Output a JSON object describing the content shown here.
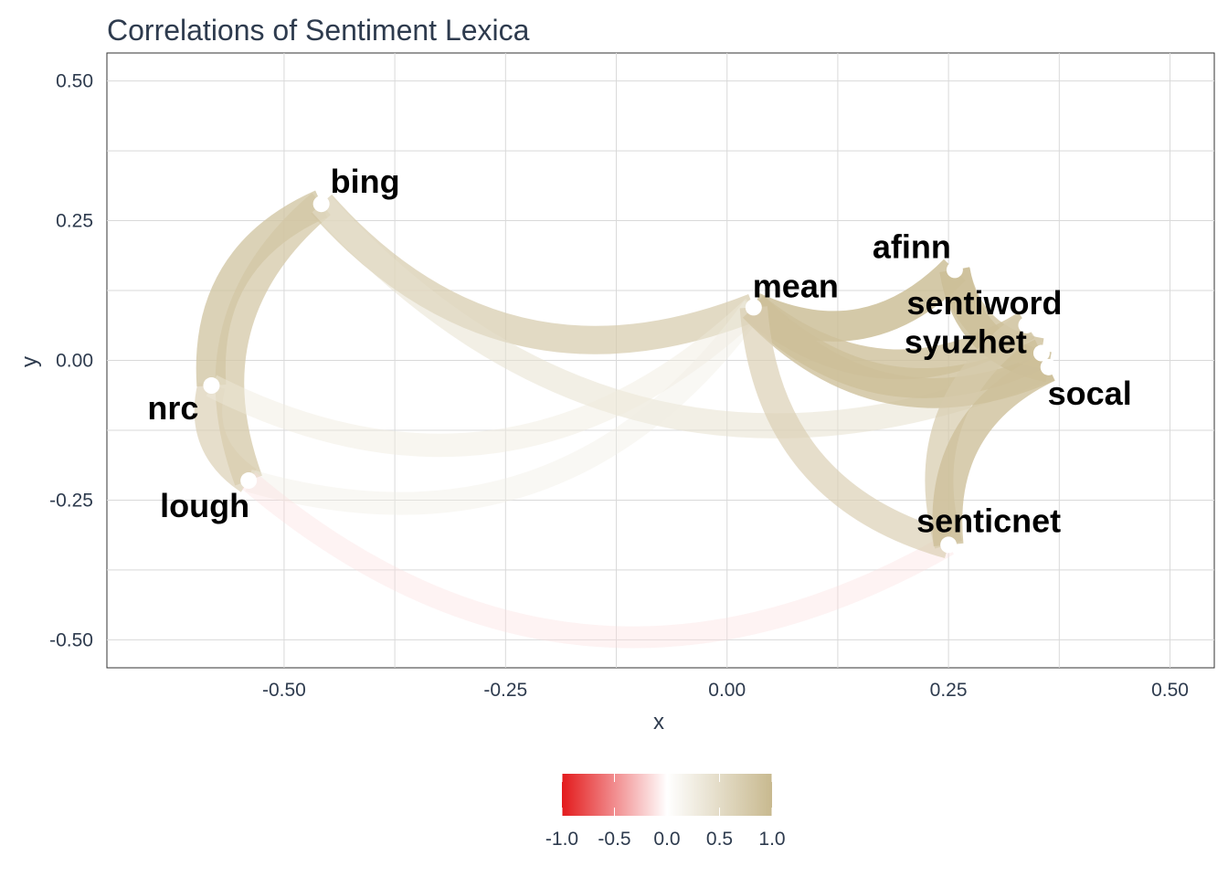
{
  "chart_data": {
    "type": "network",
    "title": "Correlations of Sentiment Lexica",
    "xlabel": "x",
    "ylabel": "y",
    "xlim": [
      -0.7,
      0.55
    ],
    "ylim": [
      -0.55,
      0.55
    ],
    "x_ticks": [
      -0.5,
      -0.25,
      0.0,
      0.25,
      0.5
    ],
    "x_tick_labels": [
      "-0.50",
      "-0.25",
      "0.00",
      "0.25",
      "0.50"
    ],
    "y_ticks": [
      0.5,
      0.25,
      0.0,
      -0.25,
      -0.5
    ],
    "y_tick_labels": [
      "0.50",
      "0.25",
      "0.00",
      "-0.25",
      "-0.50"
    ],
    "grid": true,
    "legend_position": "bottom",
    "color_scale": {
      "low": "#e31a1c",
      "mid": "#ffffff",
      "high": "#c8b98f",
      "domain": [
        -1,
        1
      ],
      "ticks": [
        -1.0,
        -0.5,
        0.0,
        0.5,
        1.0
      ],
      "tick_labels": [
        "-1.0",
        "-0.5",
        "0.0",
        "0.5",
        "1.0"
      ]
    },
    "nodes": [
      {
        "name": "bing",
        "x": -0.458,
        "y": 0.28
      },
      {
        "name": "nrc",
        "x": -0.582,
        "y": -0.045
      },
      {
        "name": "lough",
        "x": -0.54,
        "y": -0.215
      },
      {
        "name": "mean",
        "x": 0.03,
        "y": 0.095
      },
      {
        "name": "afinn",
        "x": 0.257,
        "y": 0.162
      },
      {
        "name": "sentiword",
        "x": 0.338,
        "y": 0.063
      },
      {
        "name": "syuzhet",
        "x": 0.355,
        "y": 0.013
      },
      {
        "name": "socal",
        "x": 0.363,
        "y": -0.012
      },
      {
        "name": "senticnet",
        "x": 0.25,
        "y": -0.33
      }
    ],
    "edges": [
      {
        "from": "bing",
        "to": "mean",
        "correlation": 0.75
      },
      {
        "from": "bing",
        "to": "nrc",
        "correlation": 0.85
      },
      {
        "from": "bing",
        "to": "lough",
        "correlation": 0.8
      },
      {
        "from": "bing",
        "to": "socal",
        "correlation": 0.45
      },
      {
        "from": "nrc",
        "to": "lough",
        "correlation": 0.7
      },
      {
        "from": "nrc",
        "to": "mean",
        "correlation": 0.3
      },
      {
        "from": "lough",
        "to": "mean",
        "correlation": 0.25
      },
      {
        "from": "lough",
        "to": "senticnet",
        "correlation": -0.15
      },
      {
        "from": "mean",
        "to": "afinn",
        "correlation": 0.95
      },
      {
        "from": "mean",
        "to": "sentiword",
        "correlation": 0.9
      },
      {
        "from": "mean",
        "to": "syuzhet",
        "correlation": 0.9
      },
      {
        "from": "mean",
        "to": "socal",
        "correlation": 0.9
      },
      {
        "from": "mean",
        "to": "senticnet",
        "correlation": 0.7
      },
      {
        "from": "afinn",
        "to": "socal",
        "correlation": 0.95
      },
      {
        "from": "afinn",
        "to": "syuzhet",
        "correlation": 0.9
      },
      {
        "from": "sentiword",
        "to": "senticnet",
        "correlation": 0.75
      },
      {
        "from": "socal",
        "to": "senticnet",
        "correlation": 0.9
      }
    ]
  }
}
